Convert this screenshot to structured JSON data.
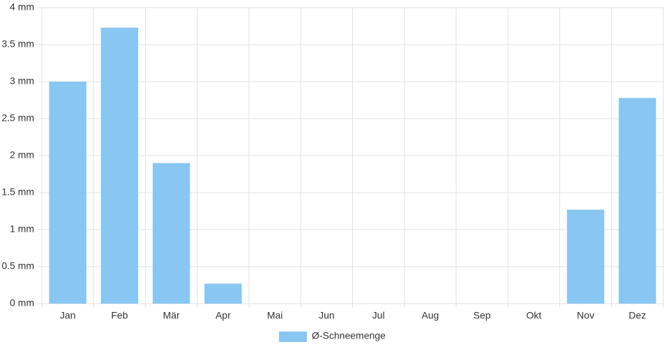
{
  "chart_data": {
    "type": "bar",
    "categories": [
      "Jan",
      "Feb",
      "Mär",
      "Apr",
      "Mai",
      "Jun",
      "Jul",
      "Aug",
      "Sep",
      "Okt",
      "Nov",
      "Dez"
    ],
    "series": [
      {
        "name": "Ø-Schneemenge",
        "color": "#89c6f1",
        "values": [
          3.0,
          3.73,
          1.9,
          0.27,
          0,
          0,
          0,
          0,
          0,
          0,
          1.27,
          2.78
        ]
      }
    ],
    "ylim": [
      0,
      4
    ],
    "yticks": [
      {
        "value": 0,
        "label": "0 mm"
      },
      {
        "value": 0.5,
        "label": "0.5 mm"
      },
      {
        "value": 1,
        "label": "1 mm"
      },
      {
        "value": 1.5,
        "label": "1.5 mm"
      },
      {
        "value": 2,
        "label": "2 mm"
      },
      {
        "value": 2.5,
        "label": "2.5 mm"
      },
      {
        "value": 3,
        "label": "3 mm"
      },
      {
        "value": 3.5,
        "label": "3.5 mm"
      },
      {
        "value": 4,
        "label": "4 mm"
      }
    ],
    "grid": true
  }
}
